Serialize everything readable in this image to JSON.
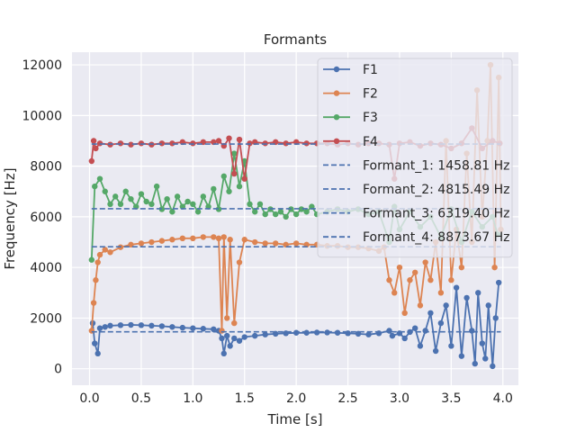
{
  "chart_data": {
    "type": "line",
    "title": "Formants",
    "xlabel": "Time [s]",
    "ylabel": "Frequency [Hz]",
    "xlim": [
      -0.17,
      4.15
    ],
    "ylim": [
      -650,
      12500
    ],
    "xticks": [
      0.0,
      0.5,
      1.0,
      1.5,
      2.0,
      2.5,
      3.0,
      3.5,
      4.0
    ],
    "xtick_labels": [
      "0.0",
      "0.5",
      "1.0",
      "1.5",
      "2.0",
      "2.5",
      "3.0",
      "3.5",
      "4.0"
    ],
    "yticks": [
      0,
      2000,
      4000,
      6000,
      8000,
      10000,
      12000
    ],
    "ytick_labels": [
      "0",
      "2000",
      "4000",
      "6000",
      "8000",
      "10000",
      "12000"
    ],
    "grid": true,
    "legend_position": "top-right",
    "series": [
      {
        "name": "F1",
        "color": "#4c72b0",
        "points": [
          [
            0.03,
            1800
          ],
          [
            0.05,
            1000
          ],
          [
            0.08,
            600
          ],
          [
            0.1,
            1600
          ],
          [
            0.15,
            1650
          ],
          [
            0.2,
            1700
          ],
          [
            0.3,
            1720
          ],
          [
            0.4,
            1730
          ],
          [
            0.5,
            1720
          ],
          [
            0.6,
            1700
          ],
          [
            0.7,
            1680
          ],
          [
            0.8,
            1650
          ],
          [
            0.9,
            1620
          ],
          [
            1.0,
            1600
          ],
          [
            1.1,
            1580
          ],
          [
            1.2,
            1560
          ],
          [
            1.25,
            1500
          ],
          [
            1.28,
            1200
          ],
          [
            1.3,
            600
          ],
          [
            1.33,
            1300
          ],
          [
            1.36,
            900
          ],
          [
            1.4,
            1200
          ],
          [
            1.45,
            1100
          ],
          [
            1.5,
            1250
          ],
          [
            1.6,
            1300
          ],
          [
            1.7,
            1350
          ],
          [
            1.8,
            1380
          ],
          [
            1.9,
            1400
          ],
          [
            2.0,
            1420
          ],
          [
            2.1,
            1420
          ],
          [
            2.2,
            1430
          ],
          [
            2.3,
            1430
          ],
          [
            2.4,
            1420
          ],
          [
            2.5,
            1400
          ],
          [
            2.6,
            1380
          ],
          [
            2.7,
            1350
          ],
          [
            2.8,
            1400
          ],
          [
            2.9,
            1500
          ],
          [
            2.93,
            1300
          ],
          [
            3.0,
            1400
          ],
          [
            3.05,
            1200
          ],
          [
            3.1,
            1450
          ],
          [
            3.15,
            1600
          ],
          [
            3.2,
            900
          ],
          [
            3.25,
            1500
          ],
          [
            3.3,
            2200
          ],
          [
            3.35,
            700
          ],
          [
            3.4,
            1800
          ],
          [
            3.45,
            2500
          ],
          [
            3.5,
            900
          ],
          [
            3.55,
            3200
          ],
          [
            3.6,
            500
          ],
          [
            3.65,
            2800
          ],
          [
            3.7,
            1500
          ],
          [
            3.73,
            200
          ],
          [
            3.76,
            3000
          ],
          [
            3.8,
            1000
          ],
          [
            3.83,
            400
          ],
          [
            3.86,
            2500
          ],
          [
            3.9,
            100
          ],
          [
            3.93,
            2000
          ],
          [
            3.96,
            3400
          ]
        ]
      },
      {
        "name": "F2",
        "color": "#dd8452",
        "points": [
          [
            0.02,
            1500
          ],
          [
            0.04,
            2600
          ],
          [
            0.06,
            3500
          ],
          [
            0.08,
            4200
          ],
          [
            0.1,
            4500
          ],
          [
            0.15,
            4700
          ],
          [
            0.2,
            4600
          ],
          [
            0.3,
            4800
          ],
          [
            0.4,
            4900
          ],
          [
            0.5,
            4950
          ],
          [
            0.6,
            5000
          ],
          [
            0.7,
            5050
          ],
          [
            0.8,
            5100
          ],
          [
            0.9,
            5150
          ],
          [
            1.0,
            5150
          ],
          [
            1.1,
            5200
          ],
          [
            1.2,
            5200
          ],
          [
            1.25,
            5150
          ],
          [
            1.28,
            1500
          ],
          [
            1.3,
            5200
          ],
          [
            1.33,
            2000
          ],
          [
            1.36,
            5100
          ],
          [
            1.4,
            1800
          ],
          [
            1.45,
            4200
          ],
          [
            1.5,
            5100
          ],
          [
            1.6,
            5000
          ],
          [
            1.7,
            4950
          ],
          [
            1.8,
            4950
          ],
          [
            1.9,
            4900
          ],
          [
            2.0,
            4950
          ],
          [
            2.1,
            4900
          ],
          [
            2.2,
            4900
          ],
          [
            2.3,
            4850
          ],
          [
            2.4,
            4850
          ],
          [
            2.5,
            4800
          ],
          [
            2.6,
            4800
          ],
          [
            2.7,
            4750
          ],
          [
            2.8,
            4650
          ],
          [
            2.85,
            4800
          ],
          [
            2.9,
            3500
          ],
          [
            2.95,
            3000
          ],
          [
            3.0,
            4000
          ],
          [
            3.05,
            2200
          ],
          [
            3.1,
            3500
          ],
          [
            3.15,
            3800
          ],
          [
            3.2,
            2500
          ],
          [
            3.25,
            4200
          ],
          [
            3.3,
            3500
          ],
          [
            3.35,
            5000
          ],
          [
            3.4,
            3000
          ],
          [
            3.45,
            9000
          ],
          [
            3.5,
            3500
          ],
          [
            3.55,
            5500
          ],
          [
            3.6,
            4000
          ],
          [
            3.65,
            8500
          ],
          [
            3.7,
            5000
          ],
          [
            3.75,
            11000
          ],
          [
            3.8,
            6000
          ],
          [
            3.85,
            9000
          ],
          [
            3.88,
            12000
          ],
          [
            3.92,
            4000
          ],
          [
            3.96,
            11500
          ],
          [
            3.98,
            5500
          ]
        ]
      },
      {
        "name": "F3",
        "color": "#55a868",
        "points": [
          [
            0.02,
            4300
          ],
          [
            0.05,
            7200
          ],
          [
            0.1,
            7500
          ],
          [
            0.15,
            7000
          ],
          [
            0.2,
            6500
          ],
          [
            0.25,
            6800
          ],
          [
            0.3,
            6500
          ],
          [
            0.35,
            7000
          ],
          [
            0.4,
            6700
          ],
          [
            0.45,
            6400
          ],
          [
            0.5,
            6900
          ],
          [
            0.55,
            6600
          ],
          [
            0.6,
            6500
          ],
          [
            0.65,
            7200
          ],
          [
            0.7,
            6300
          ],
          [
            0.75,
            6700
          ],
          [
            0.8,
            6200
          ],
          [
            0.85,
            6800
          ],
          [
            0.9,
            6400
          ],
          [
            0.95,
            6600
          ],
          [
            1.0,
            6500
          ],
          [
            1.05,
            6200
          ],
          [
            1.1,
            6800
          ],
          [
            1.15,
            6400
          ],
          [
            1.2,
            7100
          ],
          [
            1.25,
            6300
          ],
          [
            1.3,
            7600
          ],
          [
            1.35,
            7000
          ],
          [
            1.4,
            8500
          ],
          [
            1.45,
            7200
          ],
          [
            1.5,
            8200
          ],
          [
            1.55,
            6500
          ],
          [
            1.6,
            6200
          ],
          [
            1.65,
            6500
          ],
          [
            1.7,
            6100
          ],
          [
            1.75,
            6300
          ],
          [
            1.8,
            6100
          ],
          [
            1.85,
            6200
          ],
          [
            1.9,
            6000
          ],
          [
            1.95,
            6300
          ],
          [
            2.0,
            6100
          ],
          [
            2.05,
            6300
          ],
          [
            2.1,
            6200
          ],
          [
            2.15,
            6400
          ],
          [
            2.2,
            6100
          ],
          [
            2.3,
            6200
          ],
          [
            2.4,
            6300
          ],
          [
            2.5,
            6200
          ],
          [
            2.6,
            6300
          ],
          [
            2.7,
            6100
          ],
          [
            2.8,
            6200
          ],
          [
            2.9,
            5000
          ],
          [
            2.95,
            6400
          ],
          [
            3.0,
            5500
          ],
          [
            3.1,
            6200
          ],
          [
            3.2,
            5600
          ],
          [
            3.3,
            6000
          ],
          [
            3.4,
            5200
          ],
          [
            3.5,
            6300
          ],
          [
            3.6,
            5000
          ],
          [
            3.7,
            6200
          ],
          [
            3.8,
            5600
          ],
          [
            3.9,
            6000
          ],
          [
            3.95,
            5300
          ]
        ]
      },
      {
        "name": "F4",
        "color": "#c44e52",
        "points": [
          [
            0.02,
            8200
          ],
          [
            0.04,
            9000
          ],
          [
            0.06,
            8700
          ],
          [
            0.1,
            8900
          ],
          [
            0.2,
            8850
          ],
          [
            0.3,
            8900
          ],
          [
            0.4,
            8850
          ],
          [
            0.5,
            8900
          ],
          [
            0.6,
            8850
          ],
          [
            0.7,
            8900
          ],
          [
            0.8,
            8900
          ],
          [
            0.9,
            8950
          ],
          [
            1.0,
            8900
          ],
          [
            1.1,
            8950
          ],
          [
            1.2,
            8950
          ],
          [
            1.25,
            9000
          ],
          [
            1.3,
            8800
          ],
          [
            1.35,
            9100
          ],
          [
            1.4,
            7700
          ],
          [
            1.45,
            9050
          ],
          [
            1.5,
            7500
          ],
          [
            1.55,
            8900
          ],
          [
            1.6,
            8950
          ],
          [
            1.7,
            8900
          ],
          [
            1.8,
            8950
          ],
          [
            1.9,
            8900
          ],
          [
            2.0,
            8950
          ],
          [
            2.1,
            8900
          ],
          [
            2.2,
            8900
          ],
          [
            2.3,
            8900
          ],
          [
            2.4,
            8850
          ],
          [
            2.5,
            8900
          ],
          [
            2.6,
            8850
          ],
          [
            2.7,
            8900
          ],
          [
            2.8,
            8900
          ],
          [
            2.9,
            8850
          ],
          [
            2.95,
            7500
          ],
          [
            3.0,
            8900
          ],
          [
            3.1,
            8950
          ],
          [
            3.2,
            8800
          ],
          [
            3.3,
            8900
          ],
          [
            3.4,
            8850
          ],
          [
            3.5,
            8700
          ],
          [
            3.6,
            8900
          ],
          [
            3.7,
            9500
          ],
          [
            3.8,
            8700
          ],
          [
            3.9,
            9000
          ],
          [
            3.97,
            8900
          ]
        ]
      }
    ],
    "hlines": [
      {
        "name": "Formant_1: 1458.81 Hz",
        "y": 1458.81,
        "x_range": [
          0.02,
          3.98
        ],
        "color": "#4c72b0",
        "style": "dashed"
      },
      {
        "name": "Formant_2: 4815.49 Hz",
        "y": 4815.49,
        "x_range": [
          0.02,
          3.98
        ],
        "color": "#4c72b0",
        "style": "dashed"
      },
      {
        "name": "Formant_3: 6319.40 Hz",
        "y": 6319.4,
        "x_range": [
          0.02,
          3.98
        ],
        "color": "#4c72b0",
        "style": "dashed"
      },
      {
        "name": "Formant_4: 8873.67 Hz",
        "y": 8873.67,
        "x_range": [
          0.02,
          3.98
        ],
        "color": "#4c72b0",
        "style": "dashed"
      }
    ]
  },
  "style": {
    "plot_background": "#eaeaf2",
    "grid_color": "#ffffff",
    "legend_background": "#eaeaf2"
  }
}
